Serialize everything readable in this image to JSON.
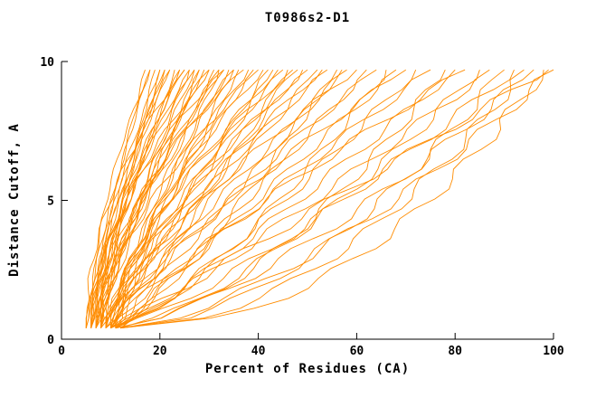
{
  "chart_data": {
    "type": "line",
    "title": "T0986s2-D1",
    "xlabel": "Percent of Residues (CA)",
    "ylabel": "Distance Cutoff, A",
    "xlim": [
      0,
      100
    ],
    "ylim": [
      0,
      10
    ],
    "x_ticks": [
      0,
      20,
      40,
      60,
      80,
      100
    ],
    "y_ticks": [
      0,
      5,
      10
    ],
    "grid": "off",
    "legend": "none",
    "line_color": "#ff8c00",
    "axis_color": "#000000",
    "y_start": 0.4,
    "y_end": 9.7,
    "curve_format": "each curve = [x_at_bottom, x_at_top, shape_exponent]; y rises from y_start to y_end as x goes x_at_bottom -> x_at_top along f^exponent",
    "curves": [
      [
        5,
        17,
        1.1
      ],
      [
        5,
        18,
        1.3
      ],
      [
        6,
        18,
        1.9
      ],
      [
        6,
        19,
        1.0
      ],
      [
        6,
        20,
        1.5
      ],
      [
        7,
        20,
        1.1
      ],
      [
        5,
        21,
        1.2
      ],
      [
        6,
        21,
        1.4
      ],
      [
        7,
        22,
        1.8
      ],
      [
        8,
        22,
        1.6
      ],
      [
        6,
        23,
        1.1
      ],
      [
        6,
        24,
        1.3
      ],
      [
        7,
        24,
        1.4
      ],
      [
        5,
        25,
        2.0
      ],
      [
        7,
        25,
        1.7
      ],
      [
        8,
        26,
        1.2
      ],
      [
        9,
        26,
        1.8
      ],
      [
        6,
        27,
        1.6
      ],
      [
        7,
        27,
        1.2
      ],
      [
        7,
        28,
        1.0
      ],
      [
        8,
        28,
        1.2
      ],
      [
        8,
        29,
        1.3
      ],
      [
        6,
        30,
        1.7
      ],
      [
        8,
        30,
        1.5
      ],
      [
        9,
        31,
        1.1
      ],
      [
        7,
        32,
        1.4
      ],
      [
        9,
        32,
        1.0
      ],
      [
        8,
        33,
        2.1
      ],
      [
        9,
        33,
        1.6
      ],
      [
        9,
        34,
        1.2
      ],
      [
        7,
        35,
        1.5
      ],
      [
        10,
        35,
        1.1
      ],
      [
        8,
        36,
        1.0
      ],
      [
        8,
        37,
        1.9
      ],
      [
        9,
        38,
        1.3
      ],
      [
        9,
        39,
        1.2
      ],
      [
        8,
        40,
        1.6
      ],
      [
        10,
        41,
        1.5
      ],
      [
        10,
        42,
        1.1
      ],
      [
        9,
        43,
        1.0
      ],
      [
        9,
        44,
        1.4
      ],
      [
        10,
        45,
        1.3
      ],
      [
        10,
        46,
        0.9
      ],
      [
        11,
        47,
        1.7
      ],
      [
        8,
        48,
        1.2
      ],
      [
        10,
        49,
        1.1
      ],
      [
        11,
        50,
        1.5
      ],
      [
        9,
        52,
        1.0
      ],
      [
        11,
        53,
        1.4
      ],
      [
        10,
        54,
        1.3
      ],
      [
        11,
        56,
        0.8
      ],
      [
        10,
        57,
        0.95
      ],
      [
        9,
        58,
        1.1
      ],
      [
        10,
        60,
        1.4
      ],
      [
        10,
        62,
        0.9
      ],
      [
        11,
        64,
        1.2
      ],
      [
        10,
        66,
        0.7
      ],
      [
        12,
        68,
        1.0
      ],
      [
        11,
        70,
        1.3
      ],
      [
        10,
        72,
        0.8
      ],
      [
        12,
        75,
        1.1
      ],
      [
        11,
        78,
        0.6
      ],
      [
        12,
        80,
        0.9
      ],
      [
        11,
        82,
        1.2
      ],
      [
        12,
        85,
        0.7
      ],
      [
        11,
        87,
        0.9
      ],
      [
        12,
        90,
        0.55
      ],
      [
        11,
        92,
        0.8
      ],
      [
        12,
        94,
        0.5
      ],
      [
        11,
        96,
        0.7
      ],
      [
        12,
        98,
        0.45
      ],
      [
        12,
        100,
        0.65
      ],
      [
        11,
        99,
        1.0
      ]
    ]
  }
}
